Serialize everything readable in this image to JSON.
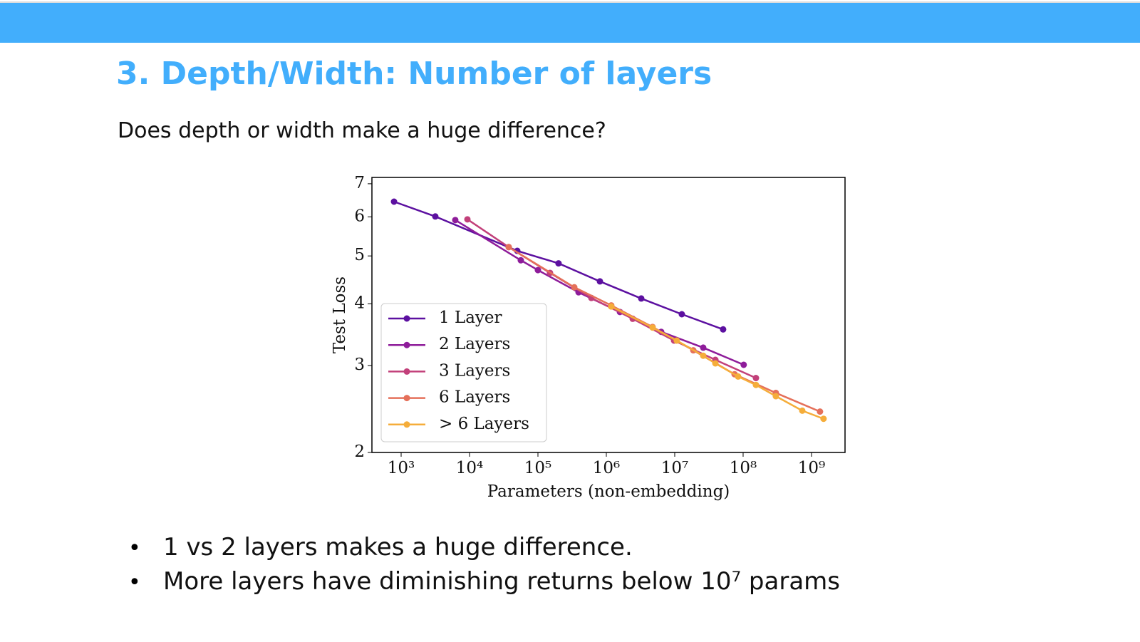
{
  "header": {
    "title": "3. Depth/Width: Number of layers",
    "subtitle": "Does depth or width make a huge difference?"
  },
  "bullets": [
    "1 vs 2 layers makes a huge difference.",
    "More layers have diminishing returns below 10⁷ params"
  ],
  "chart_data": {
    "type": "line",
    "xlabel": "Parameters (non-embedding)",
    "ylabel": "Test Loss",
    "xscale": "log",
    "yscale": "log",
    "legend": "lower left",
    "xlim": [
      374,
      3090000000
    ],
    "ylim": [
      2,
      7.21
    ],
    "xticks": [
      {
        "value": 1000,
        "label": "10³"
      },
      {
        "value": 10000,
        "label": "10⁴"
      },
      {
        "value": 100000,
        "label": "10⁵"
      },
      {
        "value": 1000000,
        "label": "10⁶"
      },
      {
        "value": 10000000,
        "label": "10⁷"
      },
      {
        "value": 100000000,
        "label": "10⁸"
      },
      {
        "value": 1000000000,
        "label": "10⁹"
      }
    ],
    "yticks": [
      2,
      3,
      4,
      5,
      6,
      7
    ],
    "series": [
      {
        "name": "1 Layer",
        "color": "#5c10a0",
        "x": [
          787,
          3160,
          49900,
          200000,
          806000,
          3240000,
          12700000,
          51000000
        ],
        "values": [
          6.44,
          6.01,
          5.12,
          4.83,
          4.44,
          4.1,
          3.81,
          3.55
        ]
      },
      {
        "name": "2 Layers",
        "color": "#8e1c9a",
        "x": [
          6190,
          56200,
          100000,
          393000,
          1580000,
          6340000,
          26100000,
          102000000
        ],
        "values": [
          5.91,
          4.9,
          4.68,
          4.22,
          3.85,
          3.51,
          3.26,
          3.01
        ]
      },
      {
        "name": "3 Layers",
        "color": "#c2407a",
        "x": [
          9310,
          37400,
          150000,
          604000,
          2430000,
          9770000,
          39300000,
          154000000
        ],
        "values": [
          5.93,
          5.21,
          4.62,
          4.11,
          3.73,
          3.37,
          3.08,
          2.83
        ]
      },
      {
        "name": "6 Layers",
        "color": "#e5705a",
        "x": [
          37400,
          340000,
          1180000,
          4750000,
          18700000,
          75000000,
          301000000,
          1330000000
        ],
        "values": [
          5.21,
          4.32,
          3.97,
          3.59,
          3.22,
          2.88,
          2.64,
          2.42
        ]
      },
      {
        "name": "> 6 Layers",
        "color": "#f5ad3a",
        "x": [
          1180000,
          4750000,
          10700000,
          26100000,
          39300000,
          84500000,
          154000000,
          301000000,
          733000000,
          1500000000
        ],
        "values": [
          3.95,
          3.58,
          3.37,
          3.14,
          3.03,
          2.85,
          2.74,
          2.6,
          2.43,
          2.34
        ]
      }
    ]
  }
}
